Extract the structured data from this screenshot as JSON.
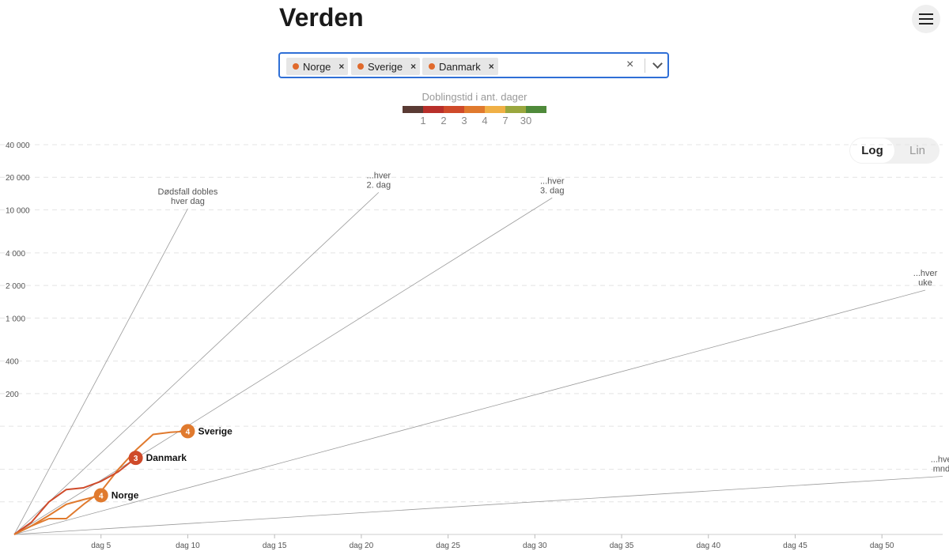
{
  "header": {
    "title": "Verden",
    "menu_icon": "hamburger-icon"
  },
  "selector": {
    "chips": [
      {
        "label": "Norge",
        "remove": "×"
      },
      {
        "label": "Sverige",
        "remove": "×"
      },
      {
        "label": "Danmark",
        "remove": "×"
      }
    ],
    "clear": "×",
    "dropdown_icon": "chevron-down-icon"
  },
  "legend": {
    "title": "Doblingstid i ant. dager",
    "colors": [
      "#5a3b34",
      "#b82f2a",
      "#cf4a2a",
      "#e07a2e",
      "#f0b046",
      "#9aa73e",
      "#4f8a3a"
    ],
    "labels": [
      "1",
      "2",
      "3",
      "4",
      "7",
      "30"
    ]
  },
  "scale_toggle": {
    "active": "Log",
    "inactive": "Lin"
  },
  "chart_data": {
    "type": "line",
    "x_scale": "linear",
    "y_scale": "log",
    "xlim": [
      0,
      53.5
    ],
    "ylim": [
      10,
      45000
    ],
    "y_ticks": [
      {
        "value": 200,
        "label": "200"
      },
      {
        "value": 400,
        "label": "400"
      },
      {
        "value": 1000,
        "label": "1 000"
      },
      {
        "value": 2000,
        "label": "2 000"
      },
      {
        "value": 4000,
        "label": "4 000"
      },
      {
        "value": 10000,
        "label": "10 000"
      },
      {
        "value": 20000,
        "label": "20 000"
      },
      {
        "value": 40000,
        "label": "40 000"
      }
    ],
    "y_grid_extra": [
      20,
      40,
      100
    ],
    "x_ticks": [
      {
        "value": 5,
        "label": "dag 5"
      },
      {
        "value": 10,
        "label": "dag 10"
      },
      {
        "value": 15,
        "label": "dag 15"
      },
      {
        "value": 20,
        "label": "dag 20"
      },
      {
        "value": 25,
        "label": "dag 25"
      },
      {
        "value": 30,
        "label": "dag 30"
      },
      {
        "value": 35,
        "label": "dag 35"
      },
      {
        "value": 40,
        "label": "dag 40"
      },
      {
        "value": 45,
        "label": "dag 45"
      },
      {
        "value": 50,
        "label": "dag 50"
      }
    ],
    "reference_lines": [
      {
        "doubling_days": 1,
        "end_day": 10,
        "label_lines": [
          "Dødsfall dobles",
          "hver dag"
        ]
      },
      {
        "doubling_days": 2,
        "end_day": 21,
        "label_lines": [
          "...hver",
          "2. dag"
        ]
      },
      {
        "doubling_days": 3,
        "end_day": 31,
        "label_lines": [
          "...hver",
          "3. dag"
        ]
      },
      {
        "doubling_days": 7,
        "end_day": 52.5,
        "label_lines": [
          "...hver",
          "uke"
        ]
      },
      {
        "doubling_days": 30,
        "end_day": 53.5,
        "label_lines": [
          "...hver",
          "mnd."
        ]
      }
    ],
    "series": [
      {
        "name": "Sverige",
        "color": "#e07a2e",
        "marker": "4",
        "x": [
          0,
          1,
          2,
          3,
          4,
          5,
          6,
          7,
          8,
          9,
          10
        ],
        "y": [
          10,
          12,
          14,
          14,
          19,
          25,
          40,
          60,
          84,
          88,
          90
        ]
      },
      {
        "name": "Danmark",
        "color": "#cf4a2a",
        "marker": "3",
        "x": [
          0,
          1,
          2,
          3,
          4,
          5,
          6,
          7
        ],
        "y": [
          10,
          13,
          20,
          26,
          27,
          31,
          38,
          51
        ]
      },
      {
        "name": "Norge",
        "color": "#e07a2e",
        "marker": "4",
        "x": [
          0,
          1,
          2,
          3,
          4,
          5
        ],
        "y": [
          10,
          12,
          15,
          19,
          21,
          23
        ]
      }
    ]
  }
}
